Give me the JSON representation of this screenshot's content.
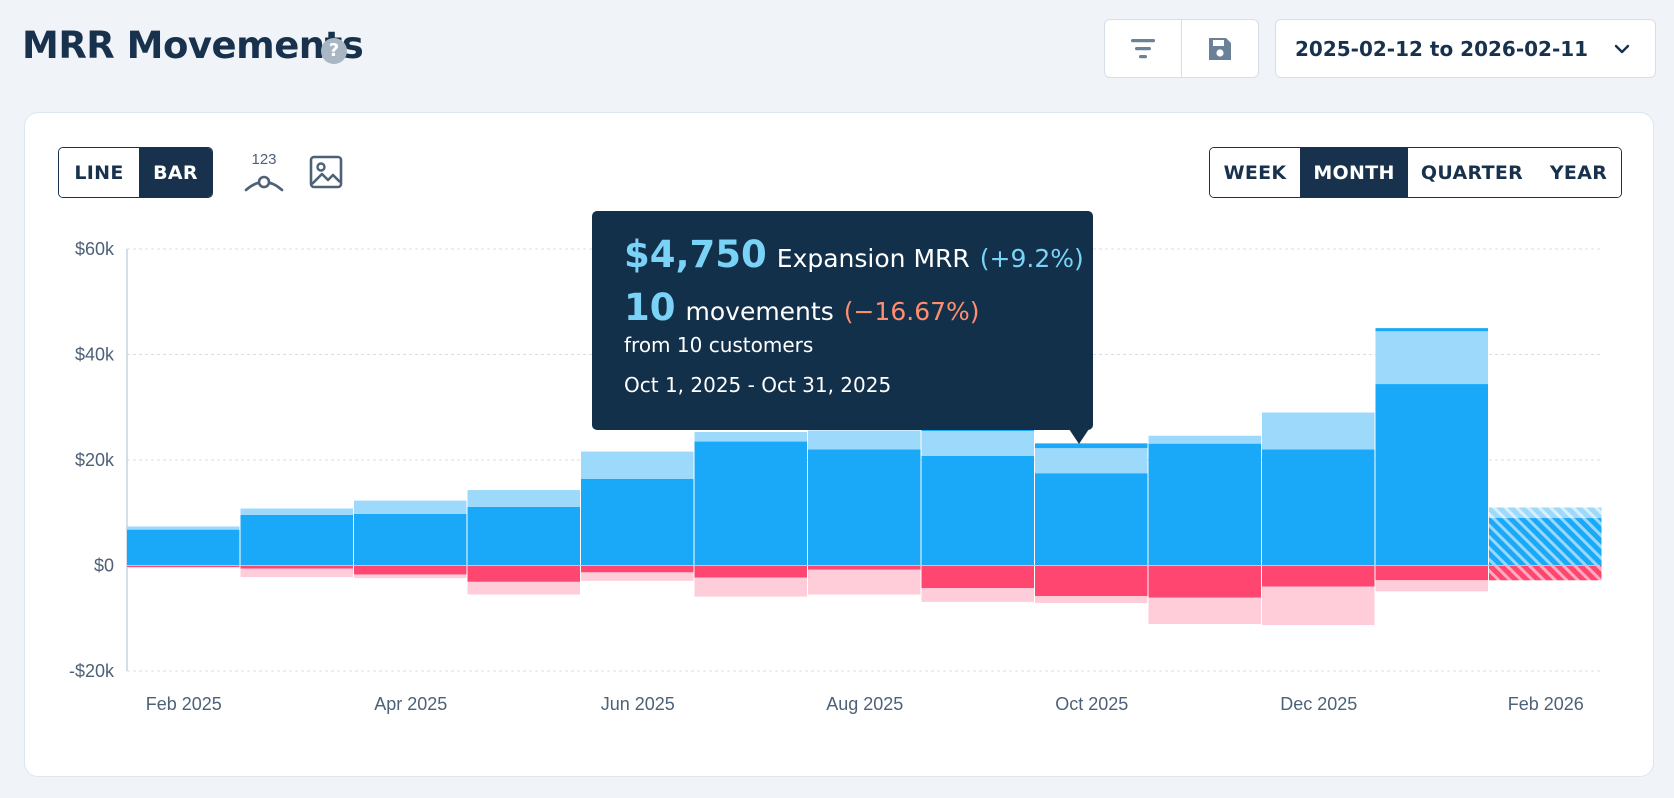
{
  "header": {
    "title": "MRR Movements",
    "help_glyph": "?",
    "date_range": "2025-02-12 to 2026-02-11"
  },
  "icons": {
    "filter": "filter-icon",
    "save": "save-icon",
    "chevron": "chevron-down-icon",
    "data_labels": "data-labels-icon",
    "image": "image-icon",
    "data_labels_text": "123"
  },
  "chart_type_toggle": {
    "options": [
      "LINE",
      "BAR"
    ],
    "selected": "BAR"
  },
  "period_toggle": {
    "options": [
      "WEEK",
      "MONTH",
      "QUARTER",
      "YEAR"
    ],
    "selected": "MONTH"
  },
  "colors": {
    "new": "#1aa9f8",
    "expansion": "#9dd9fb",
    "churn": "#ff4670",
    "contraction": "#ffccd9",
    "grid": "#d8dfe7",
    "axis": "#c9d3de",
    "tooltip_bg": "#13304b",
    "tooltip_accent": "#7ad3f7",
    "tooltip_negative": "#ff8d6f"
  },
  "chart_data": {
    "type": "bar",
    "stacked": true,
    "categories": [
      "Feb 2025",
      "Mar 2025",
      "Apr 2025",
      "May 2025",
      "Jun 2025",
      "Jul 2025",
      "Aug 2025",
      "Sep 2025",
      "Oct 2025",
      "Nov 2025",
      "Dec 2025",
      "Jan 2026",
      "Feb 2026"
    ],
    "x_tick_labels": [
      "Feb 2025",
      "Apr 2025",
      "Jun 2025",
      "Aug 2025",
      "Oct 2025",
      "Dec 2025",
      "Feb 2026"
    ],
    "y_ticks": [
      60000,
      40000,
      20000,
      0,
      -20000
    ],
    "y_tick_labels": [
      "$60k",
      "$40k",
      "$20k",
      "$0",
      "-$20k"
    ],
    "ylim": [
      -20000,
      60000
    ],
    "series": [
      {
        "name": "New MRR",
        "values": [
          6800,
          9600,
          9800,
          11100,
          16400,
          23500,
          22000,
          20800,
          17500,
          23100,
          22000,
          34400,
          9000
        ]
      },
      {
        "name": "Expansion MRR",
        "values": [
          600,
          1200,
          2500,
          3200,
          5200,
          1800,
          3600,
          4700,
          4750,
          1500,
          7000,
          10000,
          2000
        ]
      },
      {
        "name": "Churn MRR",
        "values": [
          -300,
          -600,
          -1700,
          -3100,
          -1300,
          -2300,
          -800,
          -4300,
          -5800,
          -6100,
          -4000,
          -2800,
          -2800
        ]
      },
      {
        "name": "Contraction MRR",
        "values": [
          -100,
          -1600,
          -700,
          -2400,
          -1600,
          -3600,
          -4700,
          -2600,
          -1300,
          -5000,
          -7300,
          -2100,
          0
        ]
      }
    ],
    "extra_top_band": {
      "Sep 2025": 600,
      "Oct 2025": 900,
      "Jan 2026": 600
    },
    "partial_period": "Feb 2026",
    "tooltip": {
      "amount": "$4,750",
      "label": "Expansion MRR",
      "pct": "(+9.2%)",
      "count": "10",
      "count_label": "movements",
      "count_pct": "(−16.67%)",
      "customers": "from 10 customers",
      "range": "Oct 1, 2025 - Oct 31, 2025"
    }
  }
}
